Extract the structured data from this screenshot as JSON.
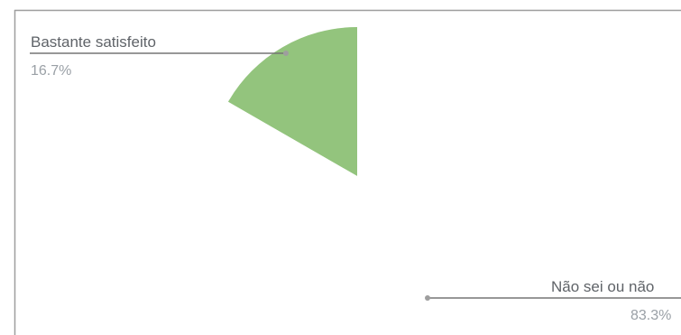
{
  "chart_data": {
    "type": "pie",
    "title": "",
    "slices": [
      {
        "label": "Bastante satisfeito",
        "value": 16.7,
        "value_label": "16.7%",
        "color": "#93c47d"
      },
      {
        "label": "Não sei ou não",
        "value": 83.3,
        "value_label": "83.3%",
        "color": "#ffffff"
      }
    ],
    "legend": "none"
  }
}
